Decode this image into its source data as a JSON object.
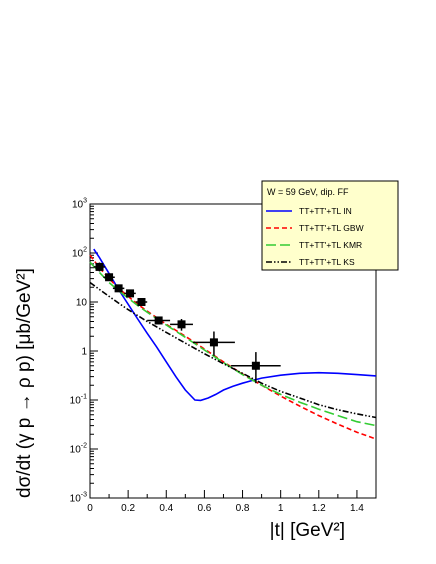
{
  "chart_data": {
    "type": "line",
    "xlabel": "|t| [GeV²]",
    "ylabel": "dσ/dt (γ p → ρ p) [μb/GeV²]",
    "xlim": [
      0,
      1.5
    ],
    "ylim": [
      0.001,
      1000
    ],
    "yscale": "log",
    "x_ticks": [
      "0",
      "0.2",
      "0.4",
      "0.6",
      "0.8",
      "1",
      "1.2",
      "1.4"
    ],
    "y_ticks": [
      {
        "base": "10",
        "exp": "-3"
      },
      {
        "base": "10",
        "exp": "-2"
      },
      {
        "base": "10",
        "exp": "-1"
      },
      {
        "base": "1",
        "exp": ""
      },
      {
        "base": "10",
        "exp": ""
      },
      {
        "base": "10",
        "exp": "2"
      },
      {
        "base": "10",
        "exp": "3"
      }
    ],
    "legend": {
      "header": "W = 59 GeV, dip. FF",
      "placement": "top-right",
      "entries": [
        {
          "label": "TT+TT'+TL IN",
          "color": "#0000ff",
          "dash": "solid"
        },
        {
          "label": "TT+TT'+TL GBW",
          "color": "#ff0000",
          "dash": "dashed"
        },
        {
          "label": "TT+TT'+TL KMR",
          "color": "#33cc33",
          "dash": "longdash"
        },
        {
          "label": "TT+TT'+TL KS",
          "color": "#000000",
          "dash": "dashdotdot"
        }
      ]
    },
    "points": [
      {
        "x": 0.05,
        "y": 52,
        "xerr": 0.03,
        "yerr_lo": 10,
        "yerr_hi": 12
      },
      {
        "x": 0.1,
        "y": 32,
        "xerr": 0.03,
        "yerr_lo": 5,
        "yerr_hi": 6
      },
      {
        "x": 0.15,
        "y": 19,
        "xerr": 0.03,
        "yerr_lo": 3,
        "yerr_hi": 3
      },
      {
        "x": 0.21,
        "y": 15,
        "xerr": 0.03,
        "yerr_lo": 2,
        "yerr_hi": 2
      },
      {
        "x": 0.27,
        "y": 10,
        "xerr": 0.03,
        "yerr_lo": 1.5,
        "yerr_hi": 1.5
      },
      {
        "x": 0.36,
        "y": 4.2,
        "xerr": 0.06,
        "yerr_lo": 0.7,
        "yerr_hi": 0.8
      },
      {
        "x": 0.48,
        "y": 3.5,
        "xerr": 0.06,
        "yerr_lo": 0.9,
        "yerr_hi": 1.0
      },
      {
        "x": 0.65,
        "y": 1.5,
        "xerr": 0.11,
        "yerr_lo": 0.7,
        "yerr_hi": 1.0
      },
      {
        "x": 0.87,
        "y": 0.5,
        "xerr": 0.13,
        "yerr_lo": 0.28,
        "yerr_hi": 0.45
      }
    ],
    "series": [
      {
        "color": "#0000ff",
        "x": [
          0.02,
          0.05,
          0.1,
          0.15,
          0.2,
          0.25,
          0.3,
          0.35,
          0.4,
          0.45,
          0.5,
          0.55,
          0.58,
          0.62,
          0.66,
          0.7,
          0.75,
          0.8,
          0.85,
          0.9,
          1.0,
          1.1,
          1.2,
          1.3,
          1.4,
          1.5
        ],
        "y": [
          120,
          80,
          38,
          18,
          9,
          4.5,
          2.3,
          1.2,
          0.6,
          0.3,
          0.16,
          0.1,
          0.098,
          0.11,
          0.13,
          0.16,
          0.19,
          0.22,
          0.25,
          0.28,
          0.32,
          0.35,
          0.36,
          0.35,
          0.33,
          0.31
        ]
      },
      {
        "color": "#ff0000",
        "x": [
          0.0,
          0.05,
          0.1,
          0.15,
          0.2,
          0.25,
          0.3,
          0.4,
          0.5,
          0.6,
          0.7,
          0.8,
          0.9,
          1.0,
          1.1,
          1.2,
          1.3,
          1.4,
          1.5
        ],
        "y": [
          90,
          50,
          30,
          19,
          13,
          9,
          6.5,
          3.5,
          2.0,
          1.1,
          0.6,
          0.34,
          0.2,
          0.12,
          0.075,
          0.048,
          0.032,
          0.022,
          0.016
        ]
      },
      {
        "color": "#33cc33",
        "x": [
          0.0,
          0.05,
          0.1,
          0.15,
          0.2,
          0.25,
          0.3,
          0.4,
          0.5,
          0.6,
          0.7,
          0.8,
          0.9,
          1.0,
          1.1,
          1.2,
          1.3,
          1.4,
          1.5
        ],
        "y": [
          65,
          40,
          25,
          17,
          12,
          8.5,
          6.2,
          3.4,
          1.9,
          1.05,
          0.58,
          0.33,
          0.2,
          0.13,
          0.09,
          0.065,
          0.048,
          0.036,
          0.03
        ]
      },
      {
        "color": "#000000",
        "x": [
          0.0,
          0.05,
          0.1,
          0.15,
          0.2,
          0.3,
          0.4,
          0.5,
          0.6,
          0.7,
          0.8,
          0.9,
          1.0,
          1.1,
          1.2,
          1.3,
          1.4,
          1.5
        ],
        "y": [
          25,
          18,
          13,
          9.5,
          7,
          4.0,
          2.4,
          1.45,
          0.88,
          0.55,
          0.35,
          0.22,
          0.15,
          0.11,
          0.08,
          0.063,
          0.052,
          0.044
        ]
      }
    ]
  }
}
